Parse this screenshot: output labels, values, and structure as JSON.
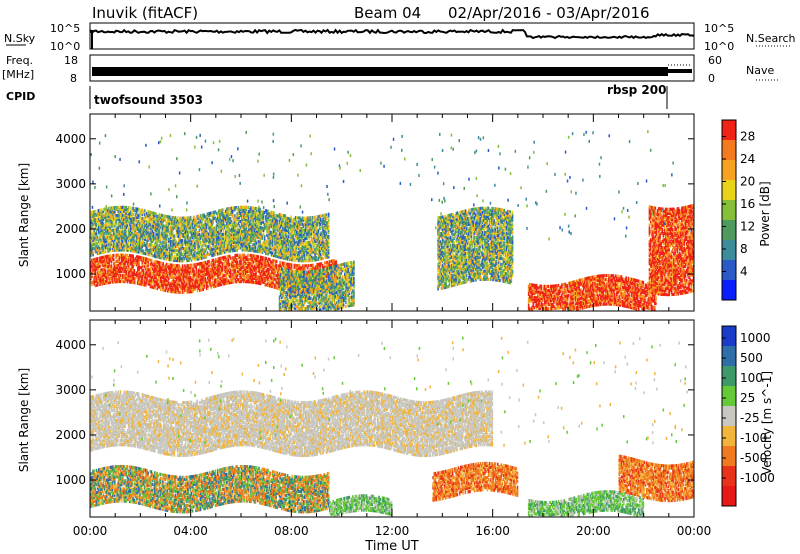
{
  "header": {
    "site": "Inuvik (fitACF)",
    "beam": "Beam 04",
    "dates": "02/Apr/2016 - 03/Apr/2016"
  },
  "noise_panel": {
    "left_label": "N.Sky",
    "left_ticks": [
      "10^5",
      "10^0"
    ],
    "right_ticks": [
      "10^5",
      "10^0"
    ],
    "right_label": "N.Search"
  },
  "freq_panel": {
    "left_label_1": "Freq.",
    "left_label_2": "[MHz]",
    "left_ticks": [
      "18",
      "8"
    ],
    "right_ticks": [
      "60",
      "0"
    ],
    "right_label": "Nave"
  },
  "cpid_panel": {
    "label": "CPID",
    "mode1": "twofsound 3503",
    "mode2": "rbsp 200",
    "mode_switch_hour": 22.9
  },
  "chart_data": [
    {
      "type": "heatmap",
      "name": "power",
      "xlabel": "",
      "ylabel": "Slant Range [km]",
      "xlim": [
        0,
        24
      ],
      "ylim": [
        180,
        4550
      ],
      "yticks": [
        1000,
        2000,
        3000,
        4000
      ],
      "colorbar": {
        "label": "Power [dB]",
        "ticks": [
          "4",
          "8",
          "12",
          "16",
          "20",
          "24",
          "28"
        ],
        "colors": [
          "#0a1eff",
          "#2a5ac8",
          "#3d8c9c",
          "#4f9a5e",
          "#86c03a",
          "#e8d21a",
          "#f5a321",
          "#f47a1f",
          "#ef2416"
        ]
      },
      "bands": [
        {
          "range_km": [
            750,
            1350
          ],
          "level": "high",
          "hours": [
            0,
            9.8
          ]
        },
        {
          "range_km": [
            1450,
            2400
          ],
          "level": "medium",
          "hours": [
            0,
            9.5
          ]
        },
        {
          "range_km": [
            250,
            1200
          ],
          "level": "medium",
          "hours": [
            7.5,
            10.5
          ]
        },
        {
          "range_km": [
            800,
            2400
          ],
          "level": "medium",
          "hours": [
            13.8,
            16.8
          ]
        },
        {
          "range_km": [
            250,
            900
          ],
          "level": "high",
          "hours": [
            17.4,
            22.5
          ]
        },
        {
          "range_km": [
            700,
            2600
          ],
          "level": "high",
          "hours": [
            22.2,
            24
          ]
        }
      ]
    },
    {
      "type": "heatmap",
      "name": "velocity",
      "xlabel": "Time UT",
      "ylabel": "Slant Range [km]",
      "xlim": [
        0,
        24
      ],
      "ylim": [
        180,
        4550
      ],
      "xticks": [
        "00:00",
        "04:00",
        "08:00",
        "12:00",
        "16:00",
        "20:00",
        "00:00"
      ],
      "yticks": [
        1000,
        2000,
        3000,
        4000
      ],
      "colorbar": {
        "label": "Velocity [m s^-1]",
        "ticks": [
          "1000",
          "500",
          "100",
          "25",
          "-25",
          "-100",
          "-500",
          "-1000"
        ],
        "colors": [
          "#1a3cc8",
          "#2f6ea8",
          "#3f9a6a",
          "#66c93a",
          "#c8c8c0",
          "#f2b43a",
          "#f07a1f",
          "#e8321a",
          "#e81818"
        ]
      },
      "bands": [
        {
          "range_km": [
            450,
            1250
          ],
          "level": "orange-green",
          "hours": [
            0,
            9.5
          ]
        },
        {
          "range_km": [
            1700,
            2900
          ],
          "level": "grey",
          "hours": [
            0,
            16
          ]
        },
        {
          "range_km": [
            250,
            600
          ],
          "level": "green",
          "hours": [
            9.5,
            12
          ]
        },
        {
          "range_km": [
            700,
            1300
          ],
          "level": "orange",
          "hours": [
            13.6,
            17
          ]
        },
        {
          "range_km": [
            250,
            700
          ],
          "level": "green",
          "hours": [
            17.4,
            22
          ]
        },
        {
          "range_km": [
            700,
            1500
          ],
          "level": "orange",
          "hours": [
            21,
            24
          ]
        }
      ]
    }
  ]
}
